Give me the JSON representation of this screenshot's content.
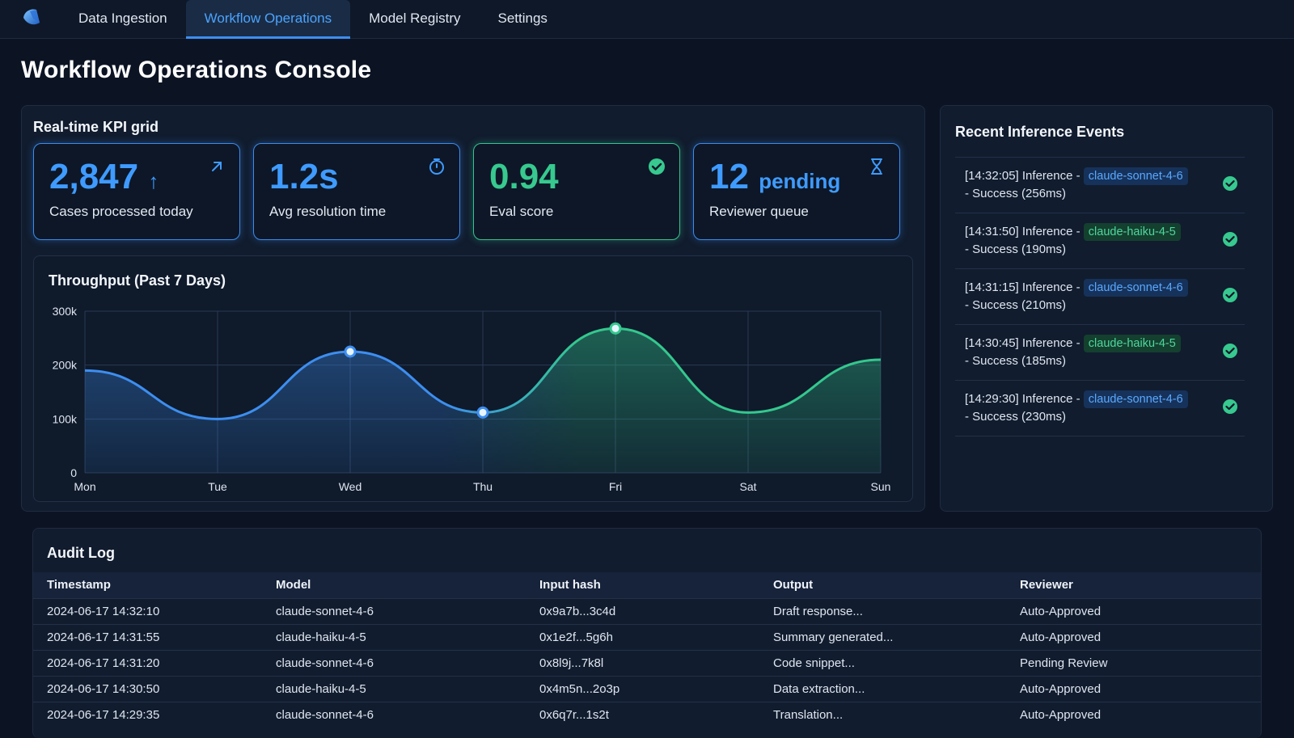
{
  "nav": {
    "tabs": [
      {
        "label": "Data Ingestion"
      },
      {
        "label": "Workflow Operations",
        "active": true
      },
      {
        "label": "Model Registry"
      },
      {
        "label": "Settings"
      }
    ]
  },
  "page": {
    "title": "Workflow Operations Console"
  },
  "kpi": {
    "section_title": "Real-time KPI grid",
    "cards": [
      {
        "value": "2,847",
        "suffix": "↑",
        "label": "Cases processed today",
        "icon": "trend-up-arrow-icon",
        "accent": "#3f9bff"
      },
      {
        "value": "1.2s",
        "suffix": "",
        "label": "Avg resolution time",
        "icon": "stopwatch-icon",
        "accent": "#3f9bff"
      },
      {
        "value": "0.94",
        "suffix": "",
        "label": "Eval score",
        "icon": "check-circle-icon",
        "accent": "#37c98f"
      },
      {
        "value": "12",
        "suffix": "pending",
        "label": "Reviewer queue",
        "icon": "hourglass-icon",
        "accent": "#3f9bff"
      }
    ]
  },
  "chart_data": {
    "type": "area",
    "title": "Throughput (Past 7 Days)",
    "categories": [
      "Mon",
      "Tue",
      "Wed",
      "Thu",
      "Fri",
      "Sat",
      "Sun"
    ],
    "values": [
      190000,
      100000,
      225000,
      112000,
      268000,
      112000,
      210000
    ],
    "highlighted_points": [
      "Wed",
      "Thu",
      "Fri"
    ],
    "ylim": [
      0,
      300000
    ],
    "yticks": [
      0,
      100000,
      200000,
      300000
    ],
    "ytick_labels": [
      "0",
      "100k",
      "200k",
      "300k"
    ],
    "grid": true,
    "colors": {
      "start": "#3d8ef0",
      "end": "#34c88e"
    }
  },
  "events": {
    "title": "Recent Inference Events",
    "items": [
      {
        "prefix": "[14:32:05] Inference -",
        "model": "claude-sonnet-4-6",
        "pill": "blue",
        "status": "- Success (256ms)"
      },
      {
        "prefix": "[14:31:50] Inference -",
        "model": "claude-haiku-4-5",
        "pill": "green",
        "status": "- Success (190ms)"
      },
      {
        "prefix": "[14:31:15] Inference -",
        "model": "claude-sonnet-4-6",
        "pill": "blue",
        "status": "- Success (210ms)"
      },
      {
        "prefix": "[14:30:45] Inference -",
        "model": "claude-haiku-4-5",
        "pill": "green",
        "status": "- Success (185ms)"
      },
      {
        "prefix": "[14:29:30] Inference -",
        "model": "claude-sonnet-4-6",
        "pill": "blue",
        "status": "- Success (230ms)"
      }
    ]
  },
  "audit": {
    "title": "Audit Log",
    "columns": [
      "Timestamp",
      "Model",
      "Input hash",
      "Output",
      "Reviewer"
    ],
    "rows": [
      [
        "2024-06-17 14:32:10",
        "claude-sonnet-4-6",
        "0x9a7b...3c4d",
        "Draft response...",
        "Auto-Approved"
      ],
      [
        "2024-06-17 14:31:55",
        "claude-haiku-4-5",
        "0x1e2f...5g6h",
        "Summary generated...",
        "Auto-Approved"
      ],
      [
        "2024-06-17 14:31:20",
        "claude-sonnet-4-6",
        "0x8l9j...7k8l",
        "Code snippet...",
        "Pending Review"
      ],
      [
        "2024-06-17 14:30:50",
        "claude-haiku-4-5",
        "0x4m5n...2o3p",
        "Data extraction...",
        "Auto-Approved"
      ],
      [
        "2024-06-17 14:29:35",
        "claude-sonnet-4-6",
        "0x6q7r...1s2t",
        "Translation...",
        "Auto-Approved"
      ]
    ]
  },
  "colors": {
    "blue": "#3f9bff",
    "green": "#37c98f",
    "background": "#0c1424"
  }
}
